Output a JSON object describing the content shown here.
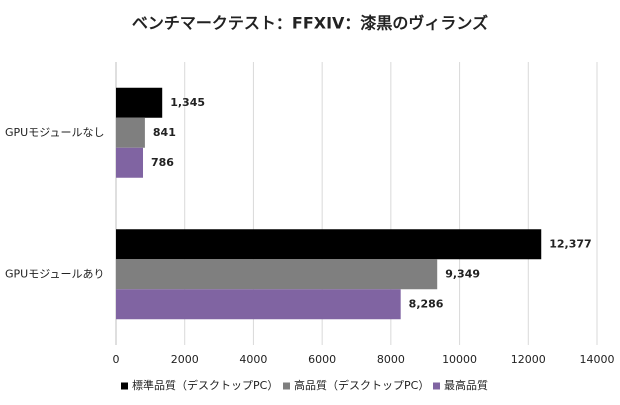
{
  "chart_data": {
    "type": "hbar",
    "title": "ベンチマークテスト：FFXIV：漆黒のヴィランズ",
    "categories": [
      "GPUモジュールなし",
      "GPUモジュールあり"
    ],
    "series": [
      {
        "name": "標準品質（デスクトップPC）",
        "color": "#000000",
        "values": [
          1345,
          12377
        ],
        "value_labels": [
          "1,345",
          "12,377"
        ]
      },
      {
        "name": "高品質（デスクトップPC）",
        "color": "#7f7f7f",
        "values": [
          841,
          9349
        ],
        "value_labels": [
          "841",
          "9,349"
        ]
      },
      {
        "name": "最高品質",
        "color": "#8064a2",
        "values": [
          786,
          8286
        ],
        "value_labels": [
          "786",
          "8,286"
        ]
      }
    ],
    "xlim": [
      0,
      14000
    ],
    "xticks": [
      0,
      2000,
      4000,
      6000,
      8000,
      10000,
      12000,
      14000
    ],
    "grid": true,
    "legend": "bottom"
  }
}
